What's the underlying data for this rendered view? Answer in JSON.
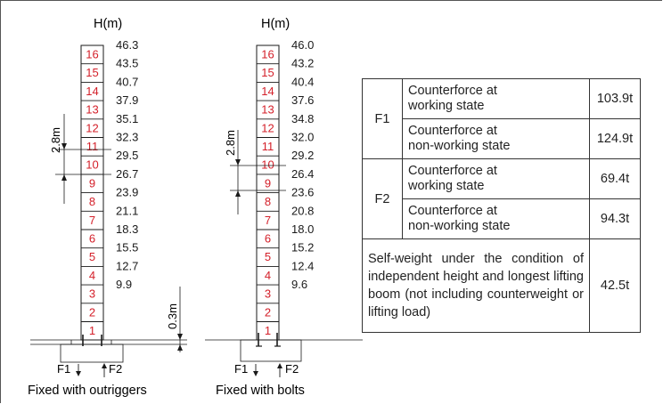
{
  "left_diagram": {
    "axis_label": "H(m)",
    "sections": [
      "16",
      "15",
      "14",
      "13",
      "12",
      "11",
      "10",
      "9",
      "8",
      "7",
      "6",
      "5",
      "4",
      "3",
      "2",
      "1"
    ],
    "heights": [
      "46.3",
      "43.5",
      "40.7",
      "37.9",
      "35.1",
      "32.3",
      "29.5",
      "26.7",
      "23.9",
      "21.1",
      "18.3",
      "15.5",
      "12.7",
      "9.9"
    ],
    "section_dim": "2.8m",
    "base_dim": "0.3m",
    "force1": "F1",
    "force2": "F2",
    "caption": "Fixed with outriggers"
  },
  "right_diagram": {
    "axis_label": "H(m)",
    "sections": [
      "16",
      "15",
      "14",
      "13",
      "12",
      "11",
      "10",
      "9",
      "8",
      "7",
      "6",
      "5",
      "4",
      "3",
      "2",
      "1"
    ],
    "heights": [
      "46.0",
      "43.2",
      "40.4",
      "37.6",
      "34.8",
      "32.0",
      "29.2",
      "26.4",
      "23.6",
      "20.8",
      "18.0",
      "15.2",
      "12.4",
      "9.6"
    ],
    "section_dim": "2.8m",
    "force1": "F1",
    "force2": "F2",
    "caption": "Fixed with bolts"
  },
  "table": {
    "f1_label": "F1",
    "f2_label": "F2",
    "rows": [
      {
        "line1": "Counterforce at",
        "line2": "working state",
        "value": "103.9t"
      },
      {
        "line1": "Counterforce at",
        "line2": "non-working state",
        "value": "124.9t"
      },
      {
        "line1": "Counterforce at",
        "line2": "working state",
        "value": "69.4t"
      },
      {
        "line1": "Counterforce at",
        "line2": "non-working state",
        "value": "94.3t"
      }
    ],
    "note": "Self-weight under the condition of independent height and longest lifting boom (not including counterweight or lifting load)",
    "note_value": "42.5t"
  },
  "colors": {
    "section_number": "#d4202a",
    "line": "#1a1a1a"
  }
}
